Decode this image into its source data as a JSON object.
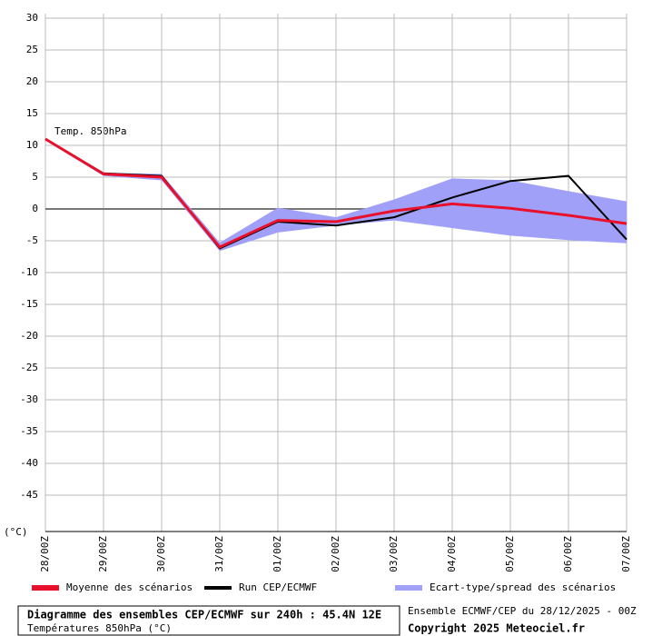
{
  "chart_data": {
    "type": "line",
    "annotation": "Temp. 850hPa",
    "y_unit": "(°C)",
    "categories": [
      "28/00Z",
      "29/00Z",
      "30/00Z",
      "31/00Z",
      "01/00Z",
      "02/00Z",
      "03/00Z",
      "04/00Z",
      "05/00Z",
      "06/00Z",
      "07/00Z"
    ],
    "band": {
      "name": "Ecart-type/spread des scénarios",
      "color": "#a0a0f8",
      "upper": [
        11,
        5.7,
        5.5,
        -5.3,
        0.2,
        -1.3,
        1.5,
        4.8,
        4.5,
        2.8,
        1.2
      ],
      "lower": [
        10.8,
        5.2,
        4.5,
        -6.6,
        -3.7,
        -2.6,
        -1.8,
        -3,
        -4.2,
        -4.9,
        -5.4
      ]
    },
    "series": [
      {
        "name": "Run CEP/ECMWF",
        "color": "#000000",
        "values": [
          11,
          5.6,
          5.2,
          -6.2,
          -2,
          -2.6,
          -1.3,
          1.8,
          4.4,
          5.2,
          -4.8
        ]
      },
      {
        "name": "Moyenne des scénarios",
        "color": "#e8102a",
        "values": [
          11,
          5.5,
          5,
          -6,
          -1.8,
          -2,
          -0.3,
          0.8,
          0.1,
          -1,
          -2.3
        ]
      }
    ],
    "ylim": [
      -50,
      30
    ],
    "yticks": [
      30,
      25,
      20,
      15,
      10,
      5,
      0,
      -5,
      -10,
      -15,
      -20,
      -25,
      -30,
      -35,
      -40,
      -45
    ],
    "grid": true,
    "footer": {
      "title": "Diagramme des ensembles CEP/ECMWF sur 240h : 45.4N 12E",
      "subtitle": "Températures 850hPa (°C)",
      "run": "Ensemble ECMWF/CEP du 28/12/2025 - 00Z",
      "copyright": "Copyright 2025 Meteociel.fr"
    }
  }
}
